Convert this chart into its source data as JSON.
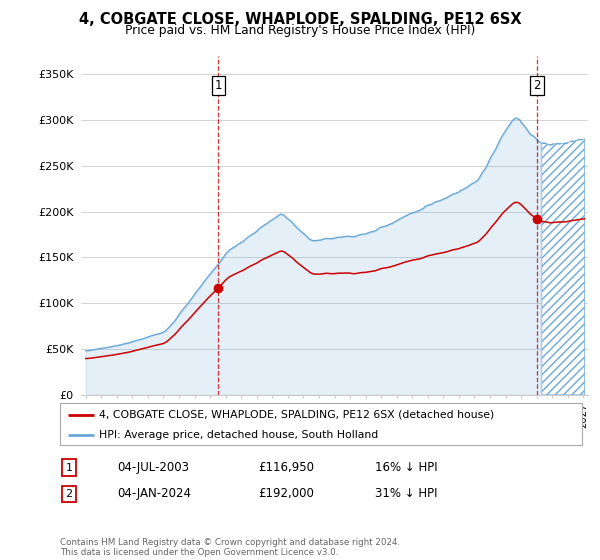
{
  "title": "4, COBGATE CLOSE, WHAPLODE, SPALDING, PE12 6SX",
  "subtitle": "Price paid vs. HM Land Registry's House Price Index (HPI)",
  "legend_line1": "4, COBGATE CLOSE, WHAPLODE, SPALDING, PE12 6SX (detached house)",
  "legend_line2": "HPI: Average price, detached house, South Holland",
  "annotation1_label": "1",
  "annotation1_date": "04-JUL-2003",
  "annotation1_price": "£116,950",
  "annotation1_hpi": "16% ↓ HPI",
  "annotation2_label": "2",
  "annotation2_date": "04-JAN-2024",
  "annotation2_price": "£192,000",
  "annotation2_hpi": "31% ↓ HPI",
  "footer": "Contains HM Land Registry data © Crown copyright and database right 2024.\nThis data is licensed under the Open Government Licence v3.0.",
  "hpi_color": "#6aa8d8",
  "price_color": "#cc0000",
  "ylim": [
    0,
    370000
  ],
  "yticks": [
    0,
    50000,
    100000,
    150000,
    200000,
    250000,
    300000,
    350000
  ],
  "ytick_labels": [
    "£0",
    "£50K",
    "£100K",
    "£150K",
    "£200K",
    "£250K",
    "£300K",
    "£350K"
  ],
  "xmin": 1994.7,
  "xmax": 2027.3,
  "hatch_start": 2024.25,
  "sale1_year": 2003.54,
  "sale1_price": 116950,
  "sale2_year": 2024.02,
  "sale2_price": 192000,
  "background_color": "#ffffff",
  "grid_color": "#cccccc"
}
